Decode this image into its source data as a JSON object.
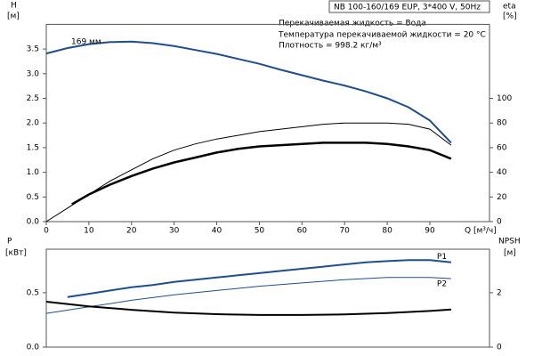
{
  "chart_data": [
    {
      "type": "line",
      "title": "NB 100-160/169 EUP, 3*400 V, 50Hz",
      "annotations": [
        "Перекачиваемая жидкость = Вода",
        "Температура перекачиваемой жидкости = 20 °C",
        "Плотность = 998.2 кг/м³"
      ],
      "y_label": "H",
      "y_unit": "[м]",
      "y2_label": "eta",
      "y2_unit": "[%]",
      "x_label": "Q [м³/ч]",
      "xlim": [
        0,
        104
      ],
      "xticks": [
        0,
        10,
        20,
        30,
        40,
        50,
        60,
        70,
        80,
        90
      ],
      "ylim": [
        0,
        4
      ],
      "yticks": [
        {
          "value": 0,
          "label": "0.0"
        },
        0.5,
        {
          "value": 1,
          "label": "1.0"
        },
        1.5,
        {
          "value": 2,
          "label": "2.0"
        },
        2.5,
        {
          "value": 3,
          "label": "3.0"
        },
        3.5
      ],
      "y2lim": [
        0,
        160
      ],
      "y2ticks": [
        0,
        20,
        40,
        60,
        80,
        100
      ],
      "series": [
        {
          "name": "169 мм",
          "color": "#1f4e8c",
          "line_width": 2,
          "x": [
            0,
            5,
            10,
            15,
            20,
            25,
            30,
            35,
            40,
            45,
            50,
            55,
            60,
            65,
            70,
            75,
            80,
            85,
            90,
            95
          ],
          "values": [
            3.41,
            3.52,
            3.6,
            3.64,
            3.65,
            3.62,
            3.56,
            3.48,
            3.4,
            3.3,
            3.2,
            3.08,
            2.97,
            2.86,
            2.76,
            2.64,
            2.5,
            2.32,
            2.05,
            1.6
          ]
        },
        {
          "color": "#000000",
          "line_width": 1,
          "axis": "y2",
          "x": [
            0,
            5,
            10,
            15,
            20,
            25,
            30,
            35,
            40,
            45,
            50,
            55,
            60,
            65,
            70,
            75,
            80,
            85,
            90,
            95
          ],
          "values": [
            0,
            11,
            22,
            33,
            42,
            51,
            58,
            63,
            67,
            70,
            73,
            75,
            77,
            79,
            80,
            80,
            80,
            79,
            75,
            62
          ]
        },
        {
          "color": "#000000",
          "line_width": 2.5,
          "axis": "y2",
          "x": [
            6,
            10,
            15,
            20,
            25,
            30,
            35,
            40,
            45,
            50,
            55,
            60,
            65,
            70,
            75,
            80,
            85,
            90,
            95
          ],
          "values": [
            14,
            22,
            30,
            37,
            43,
            48,
            52,
            56,
            59,
            61,
            62,
            63,
            64,
            64,
            64,
            63,
            61,
            58,
            51
          ]
        }
      ]
    },
    {
      "type": "line",
      "y_label": "P",
      "y_unit": "[кВт]",
      "y2_label": "NPSH",
      "y2_unit": "[м]",
      "xlim": [
        0,
        104
      ],
      "ylim": [
        0,
        0.9
      ],
      "yticks": [
        {
          "value": 0,
          "label": "0.0"
        },
        0.5
      ],
      "y2lim": [
        0,
        3.6
      ],
      "y2ticks": [
        0,
        2
      ],
      "series": [
        {
          "name": "P1",
          "color": "#1f4e8c",
          "line_width": 2,
          "x": [
            5,
            10,
            15,
            20,
            25,
            30,
            35,
            40,
            45,
            50,
            55,
            60,
            65,
            70,
            75,
            80,
            85,
            90,
            95
          ],
          "values": [
            0.46,
            0.49,
            0.52,
            0.55,
            0.57,
            0.6,
            0.62,
            0.64,
            0.66,
            0.68,
            0.7,
            0.72,
            0.74,
            0.76,
            0.78,
            0.79,
            0.8,
            0.8,
            0.78
          ]
        },
        {
          "name": "P2",
          "color": "#1f4e8c",
          "line_width": 1,
          "x": [
            0,
            10,
            20,
            30,
            40,
            50,
            60,
            70,
            80,
            90,
            95
          ],
          "values": [
            0.31,
            0.37,
            0.43,
            0.48,
            0.52,
            0.56,
            0.59,
            0.62,
            0.64,
            0.64,
            0.63
          ]
        },
        {
          "color": "#000000",
          "line_width": 2,
          "axis": "y2",
          "x": [
            0,
            10,
            20,
            30,
            40,
            50,
            60,
            70,
            80,
            90,
            95
          ],
          "values": [
            1.67,
            1.5,
            1.37,
            1.27,
            1.21,
            1.18,
            1.18,
            1.2,
            1.25,
            1.33,
            1.38
          ]
        }
      ]
    }
  ]
}
